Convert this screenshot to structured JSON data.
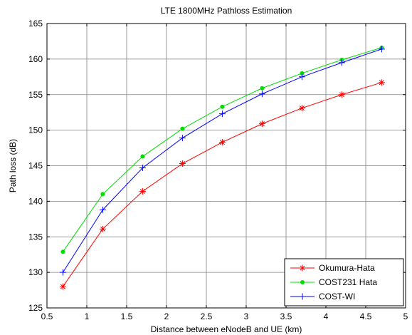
{
  "chart_data": {
    "type": "line",
    "title": "LTE 1800MHz Pathloss Estimation",
    "xlabel": "Distance between eNodeB and UE (km)",
    "ylabel": "Path loss (dB)",
    "xlim": [
      0.5,
      5
    ],
    "ylim": [
      125,
      165
    ],
    "xticks": [
      0.5,
      1,
      1.5,
      2,
      2.5,
      3,
      3.5,
      4,
      4.5,
      5
    ],
    "xtick_labels": [
      "0.5",
      "1",
      "1.5",
      "2",
      "2.5",
      "3",
      "3.5",
      "4",
      "4.5",
      "5"
    ],
    "yticks": [
      125,
      130,
      135,
      140,
      145,
      150,
      155,
      160,
      165
    ],
    "ytick_labels": [
      "125",
      "130",
      "135",
      "140",
      "145",
      "150",
      "155",
      "160",
      "165"
    ],
    "grid": true,
    "legend_position": "bottom-right",
    "x": [
      0.7,
      1.2,
      1.7,
      2.2,
      2.7,
      3.2,
      3.7,
      4.2,
      4.7
    ],
    "series": [
      {
        "name": "Okumura-Hata",
        "color": "#ff0000",
        "marker": "asterisk",
        "values": [
          128.0,
          136.1,
          141.4,
          145.3,
          148.3,
          150.9,
          153.1,
          155.0,
          156.7
        ]
      },
      {
        "name": "COST231 Hata",
        "color": "#00dd00",
        "marker": "dot",
        "values": [
          132.9,
          141.0,
          146.3,
          150.2,
          153.3,
          155.9,
          158.0,
          159.9,
          161.6
        ]
      },
      {
        "name": "COST-WI",
        "color": "#0000ff",
        "marker": "plus",
        "values": [
          130.0,
          138.8,
          144.7,
          148.9,
          152.3,
          155.1,
          157.5,
          159.5,
          161.4
        ]
      }
    ]
  }
}
